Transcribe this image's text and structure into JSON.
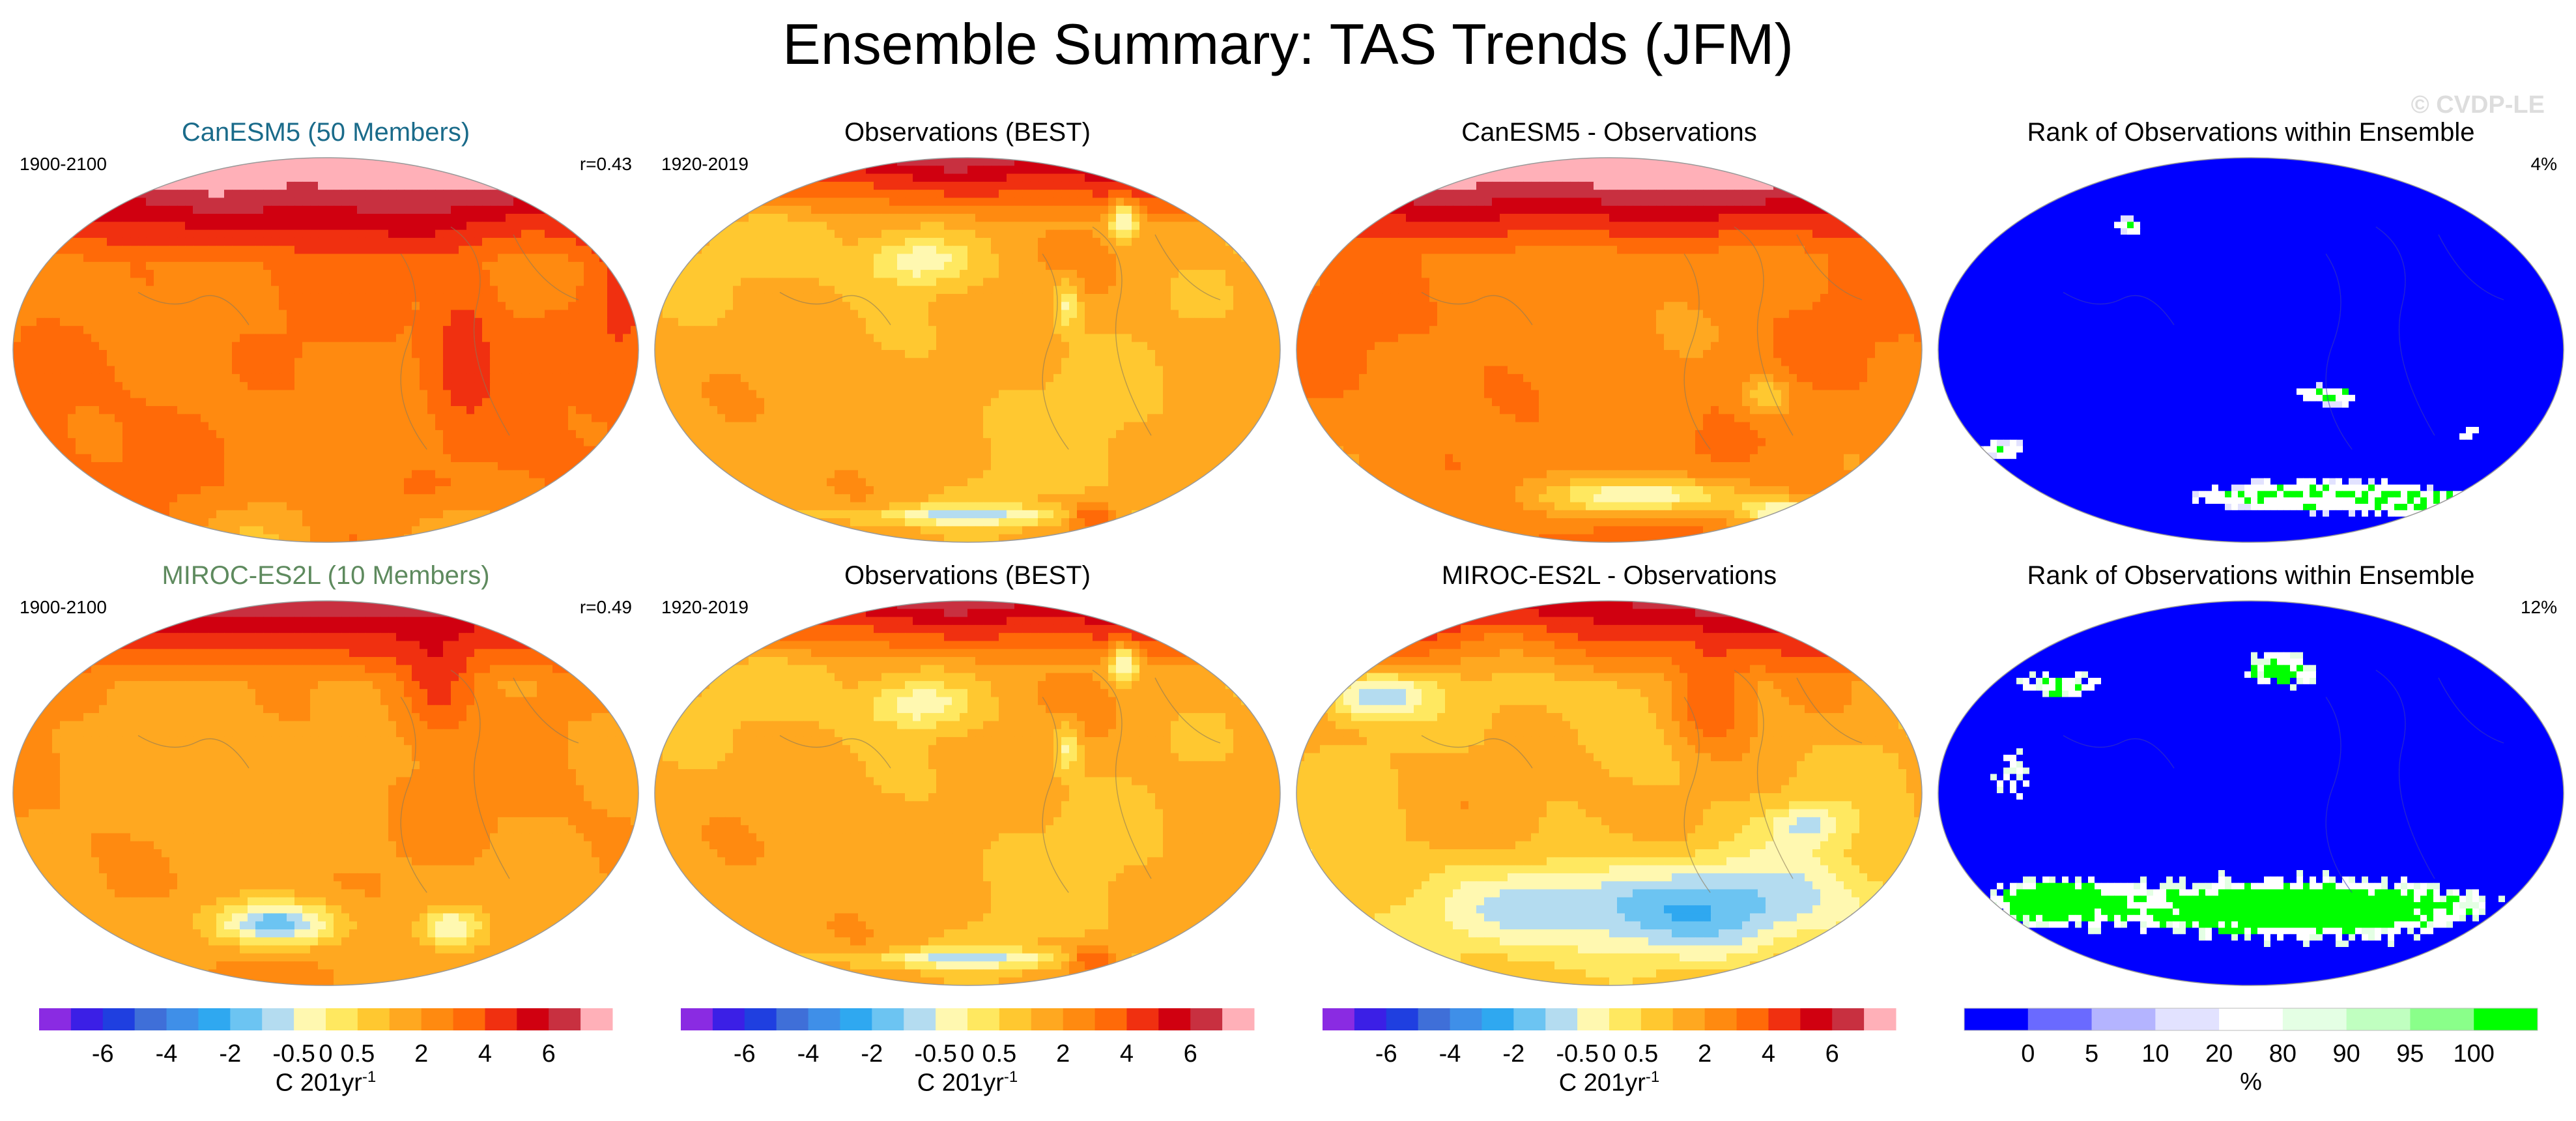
{
  "title": "Ensemble Summary: TAS Trends (JFM)",
  "watermark": "© CVDP-LE",
  "rows": [
    {
      "model": {
        "title": "CanESM5 (50 Members)",
        "title_color": "#1a6b8a",
        "period": "1900-2100",
        "stat": "r=0.43",
        "pattern": "model_canesm"
      },
      "obs": {
        "title": "Observations (BEST)",
        "title_color": "#000000",
        "period": "1920-2019",
        "stat": "",
        "pattern": "obs"
      },
      "diff": {
        "title": "CanESM5 - Observations",
        "title_color": "#000000",
        "period": "",
        "stat": "",
        "pattern": "diff_canesm"
      },
      "rank": {
        "title": "Rank of Observations within Ensemble",
        "title_color": "#000000",
        "period": "",
        "stat": "4%",
        "pattern": "rank_canesm"
      }
    },
    {
      "model": {
        "title": "MIROC-ES2L (10 Members)",
        "title_color": "#5e8a5e",
        "period": "1900-2100",
        "stat": "r=0.49",
        "pattern": "model_miroc"
      },
      "obs": {
        "title": "Observations (BEST)",
        "title_color": "#000000",
        "period": "1920-2019",
        "stat": "",
        "pattern": "obs"
      },
      "diff": {
        "title": "MIROC-ES2L - Observations",
        "title_color": "#000000",
        "period": "",
        "stat": "",
        "pattern": "diff_miroc"
      },
      "rank": {
        "title": "Rank of Observations within Ensemble",
        "title_color": "#000000",
        "period": "",
        "stat": "12%",
        "pattern": "rank_miroc"
      }
    }
  ],
  "chart_data": [
    {
      "type": "heatmap",
      "kind": "trend_colorbar",
      "colors": [
        "#8a2be2",
        "#3b1fe6",
        "#1f3fe0",
        "#3f6fd8",
        "#3f8fe8",
        "#2fa8f0",
        "#6cc4f2",
        "#b4dcf0",
        "#fff8b0",
        "#ffe860",
        "#ffc830",
        "#ffa820",
        "#ff8a10",
        "#ff6a08",
        "#f03010",
        "#d00010",
        "#c83040",
        "#ffb0b8"
      ],
      "tick_labels": [
        "-6",
        "-4",
        "-2",
        "-0.5",
        "0",
        "0.5",
        "2",
        "4",
        "6"
      ],
      "tick_boundaries": [
        2,
        4,
        6,
        8,
        9,
        10,
        12,
        14,
        16
      ],
      "unit_label": "C 201yr",
      "unit_exponent": "-1"
    },
    {
      "type": "heatmap",
      "kind": "rank_colorbar",
      "colors": [
        "#0000ff",
        "#6a6aff",
        "#b4b4ff",
        "#e2e2ff",
        "#ffffff",
        "#e4ffe4",
        "#c0ffc0",
        "#8aff8a",
        "#00ff00"
      ],
      "tick_labels": [
        "0",
        "5",
        "10",
        "20",
        "80",
        "90",
        "95",
        "100"
      ],
      "tick_boundaries": [
        1,
        2,
        3,
        4,
        5,
        6,
        7,
        8
      ],
      "unit_label": "%"
    }
  ]
}
